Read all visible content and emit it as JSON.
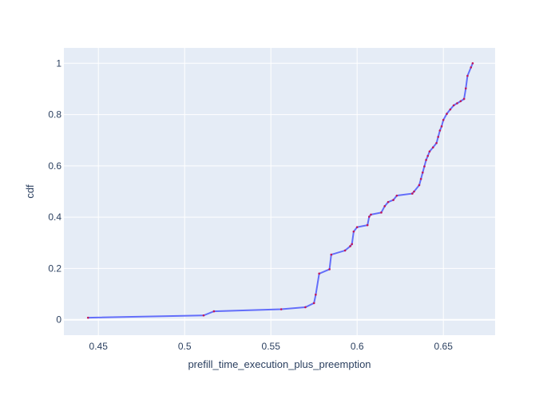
{
  "chart_data": {
    "type": "line",
    "title": "",
    "xlabel": "prefill_time_execution_plus_preemption",
    "ylabel": "cdf",
    "xlim": [
      0.43,
      0.68
    ],
    "ylim": [
      -0.06,
      1.06
    ],
    "x_ticks": [
      0.45,
      0.5,
      0.55,
      0.6,
      0.65
    ],
    "x_tick_labels": [
      "0.45",
      "0.5",
      "0.55",
      "0.6",
      "0.65"
    ],
    "y_ticks": [
      0,
      0.2,
      0.4,
      0.6,
      0.8,
      1
    ],
    "y_tick_labels": [
      "0",
      "0.2",
      "0.4",
      "0.6",
      "0.8",
      "1"
    ],
    "grid": true,
    "background_color": "#E5ECF6",
    "series": [
      {
        "line_color": "#636EFA",
        "marker_color": "#C2185B",
        "x": [
          0.444,
          0.511,
          0.517,
          0.556,
          0.57,
          0.575,
          0.576,
          0.578,
          0.584,
          0.585,
          0.593,
          0.596,
          0.597,
          0.598,
          0.6,
          0.606,
          0.607,
          0.608,
          0.614,
          0.616,
          0.618,
          0.621,
          0.623,
          0.632,
          0.633,
          0.636,
          0.637,
          0.638,
          0.639,
          0.64,
          0.641,
          0.642,
          0.644,
          0.646,
          0.647,
          0.648,
          0.649,
          0.65,
          0.652,
          0.654,
          0.656,
          0.658,
          0.66,
          0.662,
          0.663,
          0.664,
          0.666,
          0.667
        ],
        "y": [
          0.008,
          0.017,
          0.033,
          0.041,
          0.049,
          0.065,
          0.098,
          0.18,
          0.197,
          0.254,
          0.27,
          0.287,
          0.295,
          0.344,
          0.361,
          0.369,
          0.402,
          0.41,
          0.418,
          0.443,
          0.459,
          0.467,
          0.484,
          0.492,
          0.5,
          0.525,
          0.549,
          0.574,
          0.598,
          0.623,
          0.639,
          0.656,
          0.672,
          0.689,
          0.713,
          0.738,
          0.754,
          0.779,
          0.803,
          0.82,
          0.836,
          0.844,
          0.852,
          0.861,
          0.902,
          0.951,
          0.984,
          1.0
        ]
      }
    ]
  }
}
